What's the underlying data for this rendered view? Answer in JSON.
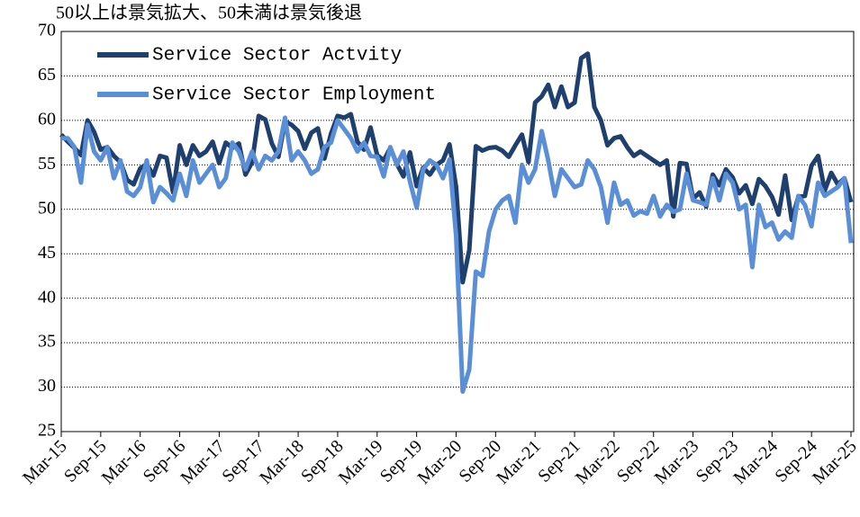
{
  "chart_data": {
    "type": "line",
    "subtitle": "50以上は景気拡大、50未満は景気後退",
    "categories": [
      "Mar-15",
      null,
      null,
      null,
      null,
      null,
      "Sep-15",
      null,
      null,
      null,
      null,
      null,
      "Mar-16",
      null,
      null,
      null,
      null,
      null,
      "Sep-16",
      null,
      null,
      null,
      null,
      null,
      "Mar-17",
      null,
      null,
      null,
      null,
      null,
      "Sep-17",
      null,
      null,
      null,
      null,
      null,
      "Mar-18",
      null,
      null,
      null,
      null,
      null,
      "Sep-18",
      null,
      null,
      null,
      null,
      null,
      "Mar-19",
      null,
      null,
      null,
      null,
      null,
      "Sep-19",
      null,
      null,
      null,
      null,
      null,
      "Mar-20",
      null,
      null,
      null,
      null,
      null,
      "Sep-20",
      null,
      null,
      null,
      null,
      null,
      "Mar-21",
      null,
      null,
      null,
      null,
      null,
      "Sep-21",
      null,
      null,
      null,
      null,
      null,
      "Mar-22",
      null,
      null,
      null,
      null,
      null,
      "Sep-22",
      null,
      null,
      null,
      null,
      null,
      "Mar-23",
      null,
      null,
      null,
      null,
      null,
      "Sep-23",
      null,
      null,
      null,
      null,
      null,
      "Mar-24",
      null,
      null,
      null,
      null,
      null,
      "Sep-24",
      null,
      null,
      null,
      null,
      null,
      "Mar-25"
    ],
    "series": [
      {
        "name": "Service Sector Actvity",
        "color": "#1f3f6f",
        "values": [
          58.4,
          57.6,
          56.9,
          56.1,
          60.0,
          58.7,
          56.7,
          57.0,
          56.0,
          55.3,
          53.3,
          52.8,
          54.6,
          55.1,
          53.8,
          56.0,
          55.8,
          51.9,
          57.2,
          55.0,
          57.2,
          56.0,
          56.5,
          57.6,
          55.2,
          57.5,
          56.9,
          57.4,
          53.9,
          55.3,
          60.5,
          60.1,
          57.4,
          55.9,
          59.9,
          59.5,
          58.8,
          56.8,
          58.6,
          59.1,
          55.7,
          58.5,
          60.5,
          60.3,
          60.7,
          57.6,
          56.7,
          59.2,
          56.1,
          55.5,
          56.9,
          55.1,
          53.7,
          56.4,
          52.6,
          54.7,
          53.9,
          55.0,
          55.5,
          57.3,
          52.5,
          41.8,
          45.4,
          57.1,
          56.6,
          56.9,
          57.0,
          56.6,
          55.9,
          57.2,
          58.4,
          55.3,
          62.0,
          62.7,
          64.0,
          61.5,
          63.8,
          61.5,
          62.0,
          67.0,
          67.5,
          61.5,
          60.0,
          57.2,
          58.0,
          58.2,
          57.0,
          56.0,
          56.5,
          56.0,
          55.5,
          55.0,
          55.5,
          49.2,
          55.2,
          55.1,
          51.2,
          51.9,
          50.3,
          53.9,
          52.7,
          54.5,
          53.6,
          51.8,
          52.7,
          50.6,
          53.4,
          52.6,
          51.4,
          49.4,
          53.8,
          48.8,
          51.4,
          51.5,
          54.9,
          56.0,
          52.1,
          54.1,
          52.8,
          53.5,
          50.8
        ]
      },
      {
        "name": "Service Sector Employment",
        "color": "#5a8fd8",
        "values": [
          58.0,
          58.0,
          57.0,
          53.0,
          59.5,
          56.5,
          55.5,
          57.0,
          53.5,
          55.5,
          52.0,
          51.5,
          52.5,
          55.5,
          50.8,
          52.5,
          51.8,
          51.0,
          54.0,
          51.5,
          55.5,
          53.0,
          54.0,
          55.0,
          52.5,
          53.5,
          57.5,
          56.5,
          54.5,
          56.5,
          54.5,
          56.0,
          55.5,
          56.5,
          60.3,
          55.5,
          56.5,
          55.5,
          54.0,
          54.5,
          57.0,
          57.5,
          60.0,
          59.0,
          58.0,
          56.5,
          57.5,
          56.0,
          55.9,
          53.7,
          57.0,
          55.0,
          56.5,
          53.1,
          50.2,
          54.5,
          55.5,
          55.0,
          53.5,
          55.6,
          47.0,
          29.5,
          32.0,
          43.0,
          42.5,
          47.5,
          50.0,
          51.0,
          51.5,
          48.5,
          55.0,
          53.0,
          54.5,
          58.8,
          55.5,
          51.5,
          54.5,
          53.5,
          52.5,
          52.8,
          55.5,
          54.5,
          52.5,
          48.5,
          53.0,
          50.5,
          51.0,
          49.3,
          49.8,
          49.5,
          51.5,
          49.2,
          50.5,
          49.7,
          50.0,
          54.0,
          51.0,
          50.8,
          50.5,
          53.5,
          51.0,
          54.0,
          53.0,
          50.0,
          50.5,
          43.5,
          50.5,
          48.0,
          48.5,
          46.6,
          47.5,
          46.8,
          51.5,
          50.5,
          48.1,
          53.0,
          51.5,
          52.0,
          52.5,
          53.5,
          46.2
        ]
      }
    ],
    "ylim": [
      25,
      70
    ],
    "yticks": [
      25,
      30,
      35,
      40,
      45,
      50,
      55,
      60,
      65,
      70
    ],
    "grid": true
  }
}
